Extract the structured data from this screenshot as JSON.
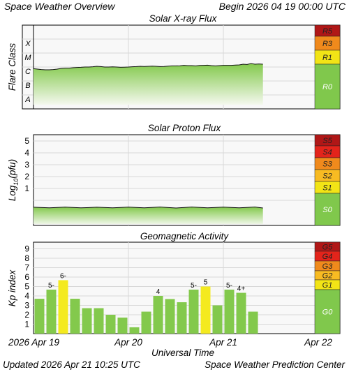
{
  "header": {
    "title": "Space Weather Overview",
    "begin": "Begin 2026 04 19 00:00 UTC"
  },
  "footer": {
    "updated": "Updated 2026 Apr 21 10:25 UTC",
    "center": "Space Weather Prediction Center"
  },
  "colors": {
    "panel_bg": "#f8f8f8",
    "grid": "#d8d8d8",
    "green_bar": "#83c94c",
    "yellow_bar": "#f4ea1f",
    "scale_green": "#80c84c",
    "scale_yellow": "#f2e416",
    "scale_orange_light": "#f8bb22",
    "scale_orange": "#f08a1c",
    "scale_red": "#e3241b",
    "scale_dark_red": "#b01717"
  },
  "chart_data": [
    {
      "type": "line",
      "title": "Solar X-ray Flux",
      "ylabel": "Flare Class",
      "y_classes": [
        "A",
        "B",
        "C",
        "M",
        "X"
      ],
      "scale": [
        {
          "label": "R5",
          "color": "#b01717"
        },
        {
          "label": "R3",
          "color": "#f08a1c"
        },
        {
          "label": "R1",
          "color": "#f2e416"
        },
        {
          "label": "R0",
          "color": "#80c84c"
        }
      ],
      "x_hours": [
        0,
        1,
        2,
        3,
        4,
        5,
        6,
        7,
        8,
        9,
        10,
        11,
        12,
        13,
        14,
        15,
        16,
        17,
        18,
        19,
        20,
        21,
        22,
        23,
        24,
        25,
        26,
        27,
        28,
        29,
        30,
        31,
        32,
        33,
        34,
        35,
        36,
        37,
        38,
        39,
        40,
        41,
        42,
        43,
        44,
        45,
        46,
        47,
        48,
        49,
        50,
        51,
        52,
        53,
        54,
        55,
        56,
        57,
        58
      ],
      "values": [
        2.18,
        2.15,
        2.12,
        2.1,
        2.1,
        2.12,
        2.15,
        2.2,
        2.22,
        2.22,
        2.25,
        2.27,
        2.28,
        2.3,
        2.3,
        2.32,
        2.35,
        2.33,
        2.3,
        2.3,
        2.31,
        2.3,
        2.28,
        2.29,
        2.3,
        2.32,
        2.33,
        2.35,
        2.34,
        2.35,
        2.36,
        2.35,
        2.33,
        2.34,
        2.36,
        2.38,
        2.38,
        2.39,
        2.42,
        2.4,
        2.4,
        2.38,
        2.41,
        2.42,
        2.43,
        2.4,
        2.38,
        2.4,
        2.42,
        2.42,
        2.42,
        2.44,
        2.45,
        2.5,
        2.48,
        2.55,
        2.5,
        2.52,
        2.5
      ]
    },
    {
      "type": "line",
      "title": "Solar Proton Flux",
      "ylabel": "Log10(pfu)",
      "ylabel_parts": {
        "main": "Log",
        "sub": "10",
        "tail": "(pfu)"
      },
      "y_ticks": [
        "1",
        "2",
        "3",
        "4",
        "5"
      ],
      "scale": [
        {
          "label": "S5",
          "color": "#b01717"
        },
        {
          "label": "S4",
          "color": "#e3241b"
        },
        {
          "label": "S3",
          "color": "#f08a1c"
        },
        {
          "label": "S2",
          "color": "#f8bb22"
        },
        {
          "label": "S1",
          "color": "#f2e416"
        },
        {
          "label": "S0",
          "color": "#80c84c"
        }
      ],
      "x_hours": [
        0,
        4,
        8,
        12,
        16,
        20,
        24,
        28,
        32,
        36,
        40,
        44,
        48,
        52,
        56,
        58
      ],
      "values": [
        -0.62,
        -0.6,
        -0.61,
        -0.6,
        -0.62,
        -0.6,
        -0.61,
        -0.6,
        -0.6,
        -0.61,
        -0.6,
        -0.6,
        -0.61,
        -0.6,
        -0.6,
        -0.61
      ]
    },
    {
      "type": "bar",
      "title": "Geomagnetic Activity",
      "ylabel": "Kp index",
      "y_ticks": [
        "1",
        "2",
        "3",
        "4",
        "5",
        "6",
        "7",
        "8",
        "9"
      ],
      "scale": [
        {
          "label": "G5",
          "color": "#b01717"
        },
        {
          "label": "G4",
          "color": "#e3241b"
        },
        {
          "label": "G3",
          "color": "#f08a1c"
        },
        {
          "label": "G2",
          "color": "#f8bb22"
        },
        {
          "label": "G1",
          "color": "#f2e416"
        },
        {
          "label": "G0",
          "color": "#80c84c"
        }
      ],
      "bars": [
        {
          "value": 3.7,
          "label": ""
        },
        {
          "value": 4.67,
          "label": "5-"
        },
        {
          "value": 5.67,
          "label": "6-"
        },
        {
          "value": 3.7,
          "label": ""
        },
        {
          "value": 2.7,
          "label": ""
        },
        {
          "value": 2.7,
          "label": ""
        },
        {
          "value": 2.0,
          "label": ""
        },
        {
          "value": 1.7,
          "label": ""
        },
        {
          "value": 0.67,
          "label": ""
        },
        {
          "value": 2.33,
          "label": ""
        },
        {
          "value": 4.0,
          "label": "4"
        },
        {
          "value": 3.67,
          "label": ""
        },
        {
          "value": 3.33,
          "label": ""
        },
        {
          "value": 4.67,
          "label": "5-"
        },
        {
          "value": 5.0,
          "label": "5"
        },
        {
          "value": 3.0,
          "label": ""
        },
        {
          "value": 4.67,
          "label": "5-"
        },
        {
          "value": 4.33,
          "label": "4+"
        },
        {
          "value": 2.33,
          "label": ""
        }
      ],
      "xlabel": "Universal Time",
      "x_ticks": [
        "2026 Apr 19",
        "Apr 20",
        "Apr 21",
        "Apr 22"
      ]
    }
  ]
}
